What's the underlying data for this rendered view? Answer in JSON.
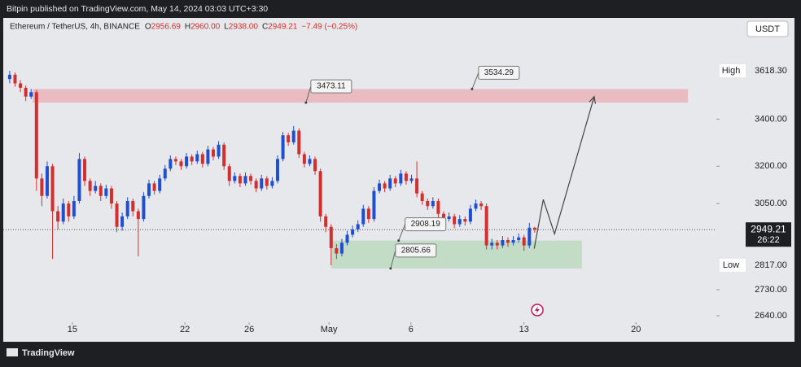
{
  "header": {
    "published": "Bitpin published on TradingView.com, May 14, 2024 03:03 UTC+3:30"
  },
  "footer": {
    "brand": "TradingView"
  },
  "chart_data": {
    "type": "candlestick",
    "symbol": "Ethereum / TetherUS, 4h, BINANCE",
    "ohlc": [
      {
        "key": "O",
        "value": "2956.69"
      },
      {
        "key": "H",
        "value": "2960.00"
      },
      {
        "key": "L",
        "value": "2938.00"
      },
      {
        "key": "C",
        "value": "2949.21"
      }
    ],
    "change": "−7.49 (−0.25%)",
    "currency": "USDT",
    "log_scale": true,
    "up_color": "#1f4fd1",
    "down_color": "#d32f2f",
    "xlim": [
      -1.2,
      131.9
    ],
    "xticks": [
      {
        "value": 11.7,
        "label": "15"
      },
      {
        "value": 32.7,
        "label": "22"
      },
      {
        "value": 44.7,
        "label": "26"
      },
      {
        "value": 59.6,
        "label": "May"
      },
      {
        "value": 74.9,
        "label": "6"
      },
      {
        "value": 96.0,
        "label": "13"
      },
      {
        "value": 116.9,
        "label": "20"
      }
    ],
    "ylim": [
      2618,
      3873
    ],
    "yticks": [
      {
        "value": 3400,
        "label": "3400.00"
      },
      {
        "value": 3200,
        "label": "3200.00"
      },
      {
        "value": 3050,
        "label": "3050.00"
      },
      {
        "value": 2730,
        "label": "2730.00"
      },
      {
        "value": 2640,
        "label": "2640.00"
      }
    ],
    "axis_markers": [
      {
        "name": "High",
        "value": 3618.3,
        "label": "3618.30"
      },
      {
        "name": "Low",
        "value": 2817,
        "label": "2817.00"
      }
    ],
    "last_price": {
      "value": 2949.21,
      "countdown": "26:22"
    },
    "zones": [
      {
        "color": "#e8b4b8",
        "x": [
          4.3,
          126.6
        ],
        "y": [
          3473.11,
          3534.29
        ]
      },
      {
        "color": "#bcd9c0",
        "x": [
          60.0,
          106.8
        ],
        "y": [
          2805.66,
          2908.19
        ]
      }
    ],
    "annotations": [
      {
        "label": "3473.11",
        "value": 3473.11,
        "x": 55.3
      },
      {
        "label": "3534.29",
        "value": 3534.29,
        "x": 86.3
      },
      {
        "label": "2908.19",
        "value": 2908.19,
        "x": 72.6
      },
      {
        "label": "2805.66",
        "value": 2805.66,
        "x": 71.1
      }
    ],
    "projection": {
      "x": [
        97.9,
        99.6,
        101.7,
        109.1
      ],
      "y": [
        2878,
        3066,
        2933,
        3500
      ]
    },
    "open": [
      3580,
      3600,
      3560,
      3540,
      3500,
      3520,
      3150,
      3080,
      3200,
      3020,
      2980,
      3050,
      3000,
      3060,
      3230,
      3140,
      3100,
      3120,
      3080,
      3110,
      3050,
      2960,
      3000,
      3060,
      3020,
      2990,
      3080,
      3130,
      3100,
      3150,
      3190,
      3230,
      3220,
      3200,
      3240,
      3220,
      3250,
      3210,
      3270,
      3240,
      3290,
      3200,
      3140,
      3160,
      3130,
      3160,
      3140,
      3110,
      3150,
      3120,
      3140,
      3230,
      3330,
      3300,
      3350,
      3250,
      3210,
      3230,
      3180,
      3000,
      2960,
      2880,
      2860,
      2900,
      2930,
      2950,
      2970,
      3030,
      2990,
      3100,
      3130,
      3110,
      3150,
      3130,
      3170,
      3140,
      3150,
      3090,
      3060,
      3040,
      3060,
      3010,
      2990,
      3000,
      2970,
      2990,
      2980,
      3030,
      3050,
      3040,
      2890,
      2900,
      2890,
      2910,
      2900,
      2910,
      2920,
      2890,
      2956.69
    ],
    "high": [
      3618.3,
      3610,
      3575,
      3550,
      3535,
      3530,
      3170,
      3220,
      3210,
      3040,
      3070,
      3060,
      3080,
      3255,
      3240,
      3150,
      3140,
      3130,
      3125,
      3120,
      3060,
      3015,
      3075,
      3070,
      3030,
      3095,
      3145,
      3140,
      3165,
      3205,
      3245,
      3240,
      3230,
      3255,
      3250,
      3265,
      3260,
      3285,
      3280,
      3305,
      3300,
      3210,
      3175,
      3170,
      3175,
      3170,
      3150,
      3165,
      3160,
      3155,
      3245,
      3345,
      3340,
      3370,
      3360,
      3260,
      3245,
      3240,
      3190,
      3010,
      2970,
      2895,
      2915,
      2945,
      2965,
      2985,
      3045,
      3040,
      3115,
      3145,
      3140,
      3165,
      3160,
      3185,
      3180,
      3165,
      3220,
      3100,
      3070,
      3075,
      3070,
      3020,
      3015,
      3010,
      3005,
      3000,
      3045,
      3065,
      3060,
      3050,
      2915,
      2910,
      2925,
      2920,
      2925,
      2935,
      2930,
      2975,
      2960
    ],
    "low": [
      3560,
      3545,
      3520,
      3480,
      3490,
      3100,
      3040,
      3070,
      2840,
      2950,
      2970,
      2980,
      2990,
      3050,
      3120,
      3080,
      3090,
      3060,
      3070,
      3030,
      2940,
      2945,
      2990,
      3000,
      2850,
      2980,
      3070,
      3085,
      3090,
      3140,
      3180,
      3205,
      3185,
      3190,
      3205,
      3210,
      3195,
      3200,
      3225,
      3230,
      3185,
      3120,
      3130,
      3115,
      3120,
      3125,
      3095,
      3100,
      3105,
      3110,
      3130,
      3220,
      3285,
      3290,
      3235,
      3195,
      3200,
      3165,
      2980,
      2940,
      2817,
      2840,
      2850,
      2890,
      2920,
      2940,
      2960,
      2975,
      2980,
      3090,
      3095,
      3100,
      3115,
      3120,
      3125,
      3130,
      3075,
      3045,
      3025,
      3030,
      2995,
      2975,
      2980,
      2955,
      2960,
      2965,
      2970,
      3020,
      3025,
      2875,
      2875,
      2875,
      2880,
      2885,
      2890,
      2900,
      2870,
      2880,
      2938
    ],
    "close": [
      3600,
      3560,
      3540,
      3500,
      3520,
      3150,
      3080,
      3200,
      3020,
      2980,
      3050,
      3000,
      3060,
      3230,
      3140,
      3100,
      3120,
      3080,
      3110,
      3050,
      2960,
      3000,
      3060,
      3020,
      2990,
      3080,
      3130,
      3100,
      3150,
      3190,
      3230,
      3220,
      3200,
      3240,
      3220,
      3250,
      3210,
      3270,
      3240,
      3290,
      3200,
      3140,
      3160,
      3130,
      3160,
      3140,
      3110,
      3150,
      3120,
      3140,
      3230,
      3330,
      3300,
      3350,
      3250,
      3210,
      3230,
      3180,
      3000,
      2960,
      2880,
      2860,
      2900,
      2930,
      2950,
      2970,
      3030,
      2990,
      3100,
      3130,
      3110,
      3150,
      3130,
      3170,
      3140,
      3150,
      3090,
      3060,
      3040,
      3060,
      3010,
      2990,
      3000,
      2970,
      2990,
      2980,
      3030,
      3050,
      3040,
      2890,
      2900,
      2890,
      2910,
      2900,
      2910,
      2920,
      2890,
      2956.69,
      2949.21
    ]
  }
}
